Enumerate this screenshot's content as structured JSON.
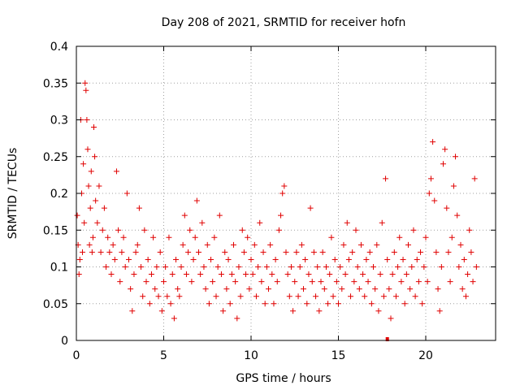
{
  "chart_data": {
    "type": "scatter",
    "title": "Day 208 of 2021, SRMTID for receiver hofn",
    "xlabel": "GPS time / hours",
    "ylabel": "SRMTID / TECUs",
    "xlim": [
      0,
      24
    ],
    "ylim": [
      0,
      0.4
    ],
    "xticks": [
      0,
      5,
      10,
      15,
      20
    ],
    "xtick_labels": [
      "0",
      "5",
      "10",
      "15",
      "20"
    ],
    "yticks": [
      0,
      0.05,
      0.1,
      0.15,
      0.2,
      0.25,
      0.3,
      0.35,
      0.4
    ],
    "ytick_labels": [
      "0",
      "0.05",
      "0.1",
      "0.15",
      "0.2",
      "0.25",
      "0.3",
      "0.35",
      "0.4"
    ],
    "grid": true,
    "marker": "plus",
    "color": "#e00000",
    "series": [
      {
        "name": "SRMTID",
        "points": [
          [
            0.05,
            0.17
          ],
          [
            0.1,
            0.13
          ],
          [
            0.15,
            0.09
          ],
          [
            0.2,
            0.11
          ],
          [
            0.25,
            0.3
          ],
          [
            0.3,
            0.2
          ],
          [
            0.35,
            0.12
          ],
          [
            0.4,
            0.24
          ],
          [
            0.45,
            0.16
          ],
          [
            0.5,
            0.35
          ],
          [
            0.55,
            0.34
          ],
          [
            0.6,
            0.3
          ],
          [
            0.65,
            0.26
          ],
          [
            0.7,
            0.21
          ],
          [
            0.75,
            0.13
          ],
          [
            0.8,
            0.18
          ],
          [
            0.85,
            0.23
          ],
          [
            0.9,
            0.12
          ],
          [
            0.95,
            0.14
          ],
          [
            1.0,
            0.29
          ],
          [
            1.05,
            0.25
          ],
          [
            1.1,
            0.19
          ],
          [
            1.2,
            0.16
          ],
          [
            1.3,
            0.21
          ],
          [
            1.4,
            0.12
          ],
          [
            1.5,
            0.15
          ],
          [
            1.6,
            0.18
          ],
          [
            1.7,
            0.1
          ],
          [
            1.8,
            0.14
          ],
          [
            1.9,
            0.12
          ],
          [
            2.0,
            0.09
          ],
          [
            2.1,
            0.13
          ],
          [
            2.2,
            0.11
          ],
          [
            2.3,
            0.23
          ],
          [
            2.4,
            0.15
          ],
          [
            2.5,
            0.08
          ],
          [
            2.6,
            0.12
          ],
          [
            2.7,
            0.14
          ],
          [
            2.8,
            0.1
          ],
          [
            2.9,
            0.2
          ],
          [
            3.0,
            0.11
          ],
          [
            3.1,
            0.07
          ],
          [
            3.2,
            0.04
          ],
          [
            3.3,
            0.09
          ],
          [
            3.4,
            0.12
          ],
          [
            3.5,
            0.13
          ],
          [
            3.6,
            0.18
          ],
          [
            3.7,
            0.1
          ],
          [
            3.8,
            0.06
          ],
          [
            3.9,
            0.15
          ],
          [
            4.0,
            0.08
          ],
          [
            4.1,
            0.11
          ],
          [
            4.2,
            0.05
          ],
          [
            4.3,
            0.09
          ],
          [
            4.4,
            0.14
          ],
          [
            4.5,
            0.07
          ],
          [
            4.6,
            0.1
          ],
          [
            4.7,
            0.06
          ],
          [
            4.8,
            0.12
          ],
          [
            4.9,
            0.04
          ],
          [
            5.0,
            0.08
          ],
          [
            5.1,
            0.1
          ],
          [
            5.2,
            0.06
          ],
          [
            5.3,
            0.14
          ],
          [
            5.4,
            0.05
          ],
          [
            5.5,
            0.09
          ],
          [
            5.6,
            0.03
          ],
          [
            5.7,
            0.11
          ],
          [
            5.8,
            0.07
          ],
          [
            5.9,
            0.06
          ],
          [
            6.0,
            0.1
          ],
          [
            6.1,
            0.13
          ],
          [
            6.2,
            0.17
          ],
          [
            6.3,
            0.09
          ],
          [
            6.4,
            0.12
          ],
          [
            6.5,
            0.15
          ],
          [
            6.6,
            0.08
          ],
          [
            6.7,
            0.11
          ],
          [
            6.8,
            0.14
          ],
          [
            6.9,
            0.19
          ],
          [
            7.0,
            0.12
          ],
          [
            7.1,
            0.09
          ],
          [
            7.2,
            0.16
          ],
          [
            7.3,
            0.1
          ],
          [
            7.4,
            0.07
          ],
          [
            7.5,
            0.13
          ],
          [
            7.6,
            0.05
          ],
          [
            7.7,
            0.11
          ],
          [
            7.8,
            0.08
          ],
          [
            7.9,
            0.14
          ],
          [
            8.0,
            0.06
          ],
          [
            8.1,
            0.1
          ],
          [
            8.2,
            0.17
          ],
          [
            8.3,
            0.09
          ],
          [
            8.4,
            0.04
          ],
          [
            8.5,
            0.12
          ],
          [
            8.6,
            0.07
          ],
          [
            8.7,
            0.11
          ],
          [
            8.8,
            0.05
          ],
          [
            8.9,
            0.09
          ],
          [
            9.0,
            0.13
          ],
          [
            9.1,
            0.08
          ],
          [
            9.2,
            0.03
          ],
          [
            9.3,
            0.1
          ],
          [
            9.4,
            0.06
          ],
          [
            9.5,
            0.15
          ],
          [
            9.6,
            0.12
          ],
          [
            9.7,
            0.09
          ],
          [
            9.8,
            0.14
          ],
          [
            9.9,
            0.07
          ],
          [
            10.0,
            0.11
          ],
          [
            10.1,
            0.09
          ],
          [
            10.2,
            0.13
          ],
          [
            10.3,
            0.06
          ],
          [
            10.4,
            0.1
          ],
          [
            10.5,
            0.16
          ],
          [
            10.6,
            0.08
          ],
          [
            10.7,
            0.12
          ],
          [
            10.8,
            0.05
          ],
          [
            10.9,
            0.1
          ],
          [
            11.0,
            0.07
          ],
          [
            11.1,
            0.13
          ],
          [
            11.2,
            0.09
          ],
          [
            11.3,
            0.05
          ],
          [
            11.4,
            0.11
          ],
          [
            11.5,
            0.08
          ],
          [
            11.6,
            0.15
          ],
          [
            11.7,
            0.17
          ],
          [
            11.8,
            0.2
          ],
          [
            11.9,
            0.21
          ],
          [
            12.0,
            0.12
          ],
          [
            12.1,
            0.09
          ],
          [
            12.2,
            0.06
          ],
          [
            12.3,
            0.1
          ],
          [
            12.4,
            0.04
          ],
          [
            12.5,
            0.08
          ],
          [
            12.6,
            0.12
          ],
          [
            12.7,
            0.06
          ],
          [
            12.8,
            0.1
          ],
          [
            12.9,
            0.13
          ],
          [
            13.0,
            0.07
          ],
          [
            13.1,
            0.11
          ],
          [
            13.2,
            0.05
          ],
          [
            13.3,
            0.09
          ],
          [
            13.4,
            0.18
          ],
          [
            13.5,
            0.08
          ],
          [
            13.6,
            0.12
          ],
          [
            13.7,
            0.06
          ],
          [
            13.8,
            0.1
          ],
          [
            13.9,
            0.04
          ],
          [
            14.0,
            0.08
          ],
          [
            14.1,
            0.12
          ],
          [
            14.2,
            0.07
          ],
          [
            14.3,
            0.1
          ],
          [
            14.4,
            0.05
          ],
          [
            14.5,
            0.09
          ],
          [
            14.6,
            0.14
          ],
          [
            14.7,
            0.06
          ],
          [
            14.8,
            0.11
          ],
          [
            14.9,
            0.08
          ],
          [
            15.0,
            0.05
          ],
          [
            15.1,
            0.1
          ],
          [
            15.2,
            0.07
          ],
          [
            15.3,
            0.13
          ],
          [
            15.4,
            0.09
          ],
          [
            15.5,
            0.16
          ],
          [
            15.6,
            0.11
          ],
          [
            15.7,
            0.06
          ],
          [
            15.8,
            0.12
          ],
          [
            15.9,
            0.08
          ],
          [
            16.0,
            0.15
          ],
          [
            16.1,
            0.1
          ],
          [
            16.2,
            0.07
          ],
          [
            16.3,
            0.13
          ],
          [
            16.4,
            0.09
          ],
          [
            16.5,
            0.06
          ],
          [
            16.6,
            0.11
          ],
          [
            16.7,
            0.08
          ],
          [
            16.8,
            0.12
          ],
          [
            16.9,
            0.05
          ],
          [
            17.0,
            0.1
          ],
          [
            17.1,
            0.07
          ],
          [
            17.2,
            0.13
          ],
          [
            17.3,
            0.04
          ],
          [
            17.4,
            0.09
          ],
          [
            17.5,
            0.16
          ],
          [
            17.6,
            0.06
          ],
          [
            17.7,
            0.22
          ],
          [
            17.8,
            0.11
          ],
          [
            17.9,
            0.07
          ],
          [
            18.0,
            0.03
          ],
          [
            18.1,
            0.09
          ],
          [
            18.2,
            0.12
          ],
          [
            18.3,
            0.06
          ],
          [
            18.4,
            0.1
          ],
          [
            18.5,
            0.14
          ],
          [
            18.6,
            0.08
          ],
          [
            18.7,
            0.11
          ],
          [
            18.8,
            0.05
          ],
          [
            18.9,
            0.09
          ],
          [
            19.0,
            0.13
          ],
          [
            19.1,
            0.07
          ],
          [
            19.2,
            0.1
          ],
          [
            19.3,
            0.15
          ],
          [
            19.4,
            0.06
          ],
          [
            19.5,
            0.11
          ],
          [
            19.6,
            0.08
          ],
          [
            19.7,
            0.12
          ],
          [
            19.8,
            0.05
          ],
          [
            19.9,
            0.1
          ],
          [
            20.0,
            0.14
          ],
          [
            20.1,
            0.08
          ],
          [
            20.2,
            0.2
          ],
          [
            20.3,
            0.22
          ],
          [
            20.4,
            0.27
          ],
          [
            20.5,
            0.19
          ],
          [
            20.6,
            0.12
          ],
          [
            20.7,
            0.07
          ],
          [
            20.8,
            0.04
          ],
          [
            20.9,
            0.1
          ],
          [
            21.0,
            0.24
          ],
          [
            21.1,
            0.26
          ],
          [
            21.2,
            0.18
          ],
          [
            21.3,
            0.12
          ],
          [
            21.4,
            0.08
          ],
          [
            21.5,
            0.14
          ],
          [
            21.6,
            0.21
          ],
          [
            21.7,
            0.25
          ],
          [
            21.8,
            0.17
          ],
          [
            21.9,
            0.1
          ],
          [
            22.0,
            0.13
          ],
          [
            22.1,
            0.07
          ],
          [
            22.2,
            0.11
          ],
          [
            22.3,
            0.06
          ],
          [
            22.4,
            0.09
          ],
          [
            22.5,
            0.15
          ],
          [
            22.6,
            0.12
          ],
          [
            22.7,
            0.08
          ],
          [
            22.8,
            0.22
          ],
          [
            22.9,
            0.1
          ]
        ]
      }
    ],
    "bottom_marker": {
      "x": 17.8,
      "y": 0
    }
  }
}
